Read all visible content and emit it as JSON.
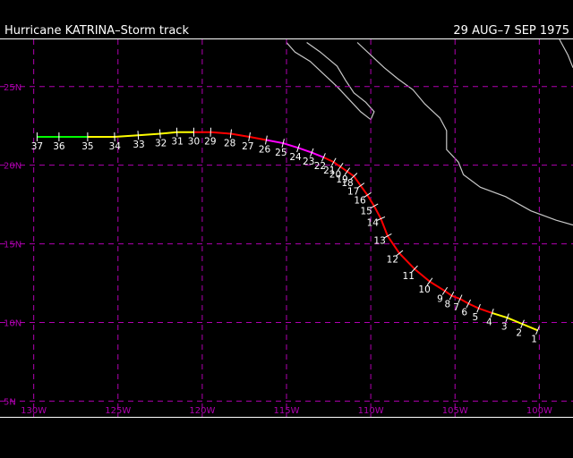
{
  "header": {
    "title": "Hurricane KATRINA–Storm track",
    "dates": "29 AUG–7 SEP 1975"
  },
  "map": {
    "lat_range": [
      4,
      28
    ],
    "lon_range": [
      -132,
      -98
    ],
    "lat_ticks": [
      {
        "value": 25,
        "label": "25N"
      },
      {
        "value": 20,
        "label": "20N"
      },
      {
        "value": 15,
        "label": "15N"
      },
      {
        "value": 10,
        "label": "10N"
      },
      {
        "value": 5,
        "label": "5N"
      }
    ],
    "lon_ticks": [
      {
        "value": -130,
        "label": "130W"
      },
      {
        "value": -125,
        "label": "125W"
      },
      {
        "value": -120,
        "label": "120W"
      },
      {
        "value": -115,
        "label": "115W"
      },
      {
        "value": -110,
        "label": "110W"
      },
      {
        "value": -105,
        "label": "105W"
      },
      {
        "value": -100,
        "label": "100W"
      }
    ],
    "grid_color": "#b000b0",
    "coast_color": "#c8c8c8"
  },
  "intensity_colors": {
    "TD": "#ffff00",
    "TS": "#00ff00",
    "H1": "#ff0000",
    "H2": "#ff00ff"
  },
  "track": [
    {
      "label": "1",
      "lon": -100.1,
      "lat": 9.5,
      "cat": "TD"
    },
    {
      "label": "2",
      "lon": -101.0,
      "lat": 9.9,
      "cat": "TD"
    },
    {
      "label": "3",
      "lon": -101.9,
      "lat": 10.3,
      "cat": "TD"
    },
    {
      "label": "4",
      "lon": -102.8,
      "lat": 10.6,
      "cat": "H1"
    },
    {
      "label": "5",
      "lon": -103.6,
      "lat": 10.9,
      "cat": "H1"
    },
    {
      "label": "6",
      "lon": -104.2,
      "lat": 11.2,
      "cat": "H1"
    },
    {
      "label": "7",
      "lon": -104.7,
      "lat": 11.5,
      "cat": "H1"
    },
    {
      "label": "8",
      "lon": -105.2,
      "lat": 11.7,
      "cat": "H1"
    },
    {
      "label": "9",
      "lon": -105.6,
      "lat": 12.0,
      "cat": "H1"
    },
    {
      "label": "10",
      "lon": -106.5,
      "lat": 12.6,
      "cat": "H1"
    },
    {
      "label": "11",
      "lon": -107.4,
      "lat": 13.4,
      "cat": "H1"
    },
    {
      "label": "12",
      "lon": -108.3,
      "lat": 14.4,
      "cat": "H1"
    },
    {
      "label": "13",
      "lon": -109.0,
      "lat": 15.5,
      "cat": "H1"
    },
    {
      "label": "14",
      "lon": -109.4,
      "lat": 16.6,
      "cat": "H1"
    },
    {
      "label": "15",
      "lon": -109.8,
      "lat": 17.4,
      "cat": "H1"
    },
    {
      "label": "16",
      "lon": -110.2,
      "lat": 18.1,
      "cat": "H1"
    },
    {
      "label": "17",
      "lon": -110.6,
      "lat": 18.7,
      "cat": "H1"
    },
    {
      "label": "18",
      "lon": -111.0,
      "lat": 19.3,
      "cat": "H1"
    },
    {
      "label": "19",
      "lon": -111.4,
      "lat": 19.6,
      "cat": "H1"
    },
    {
      "label": "20",
      "lon": -111.8,
      "lat": 19.9,
      "cat": "H1"
    },
    {
      "label": "21",
      "lon": -112.2,
      "lat": 20.2,
      "cat": "H1"
    },
    {
      "label": "22",
      "lon": -112.8,
      "lat": 20.5,
      "cat": "H2"
    },
    {
      "label": "23",
      "lon": -113.5,
      "lat": 20.8,
      "cat": "H2"
    },
    {
      "label": "24",
      "lon": -114.3,
      "lat": 21.1,
      "cat": "H2"
    },
    {
      "label": "25",
      "lon": -115.2,
      "lat": 21.4,
      "cat": "H2"
    },
    {
      "label": "26",
      "lon": -116.2,
      "lat": 21.6,
      "cat": "H1"
    },
    {
      "label": "27",
      "lon": -117.2,
      "lat": 21.8,
      "cat": "H1"
    },
    {
      "label": "28",
      "lon": -118.3,
      "lat": 22.0,
      "cat": "H1"
    },
    {
      "label": "29",
      "lon": -119.5,
      "lat": 22.1,
      "cat": "H1"
    },
    {
      "label": "30",
      "lon": -120.5,
      "lat": 22.1,
      "cat": "TD"
    },
    {
      "label": "31",
      "lon": -121.5,
      "lat": 22.1,
      "cat": "TD"
    },
    {
      "label": "32",
      "lon": -122.5,
      "lat": 22.0,
      "cat": "TD"
    },
    {
      "label": "33",
      "lon": -123.8,
      "lat": 21.9,
      "cat": "TD"
    },
    {
      "label": "34",
      "lon": -125.2,
      "lat": 21.8,
      "cat": "TD"
    },
    {
      "label": "35",
      "lon": -126.8,
      "lat": 21.8,
      "cat": "TS"
    },
    {
      "label": "36",
      "lon": -128.5,
      "lat": 21.8,
      "cat": "TS"
    },
    {
      "label": "37",
      "lon": -129.8,
      "lat": 21.8,
      "cat": "TS"
    }
  ],
  "coastlines": [
    {
      "name": "baja-west",
      "points": [
        [
          -115.0,
          27.8
        ],
        [
          -114.5,
          27.2
        ],
        [
          -113.6,
          26.6
        ],
        [
          -112.8,
          25.8
        ],
        [
          -112.0,
          25.0
        ],
        [
          -111.3,
          24.2
        ],
        [
          -110.6,
          23.4
        ],
        [
          -110.0,
          22.9
        ]
      ]
    },
    {
      "name": "baja-east",
      "points": [
        [
          -113.8,
          27.8
        ],
        [
          -113.0,
          27.2
        ],
        [
          -112.0,
          26.3
        ],
        [
          -111.5,
          25.4
        ],
        [
          -111.0,
          24.6
        ],
        [
          -110.3,
          24.0
        ],
        [
          -109.8,
          23.4
        ],
        [
          -110.0,
          22.9
        ]
      ]
    },
    {
      "name": "mexico-mainland",
      "points": [
        [
          -110.8,
          27.8
        ],
        [
          -110.0,
          27.0
        ],
        [
          -109.2,
          26.2
        ],
        [
          -108.4,
          25.5
        ],
        [
          -107.5,
          24.8
        ],
        [
          -106.8,
          23.9
        ],
        [
          -105.9,
          23.0
        ],
        [
          -105.5,
          22.2
        ],
        [
          -105.5,
          21.0
        ],
        [
          -104.8,
          20.2
        ],
        [
          -104.5,
          19.4
        ],
        [
          -103.5,
          18.6
        ],
        [
          -102.0,
          18.0
        ],
        [
          -100.5,
          17.1
        ],
        [
          -99.0,
          16.5
        ],
        [
          -98.0,
          16.2
        ]
      ]
    },
    {
      "name": "mexico-gulf",
      "points": [
        [
          -98.8,
          28.0
        ],
        [
          -98.3,
          27.0
        ],
        [
          -98.0,
          26.2
        ]
      ]
    }
  ]
}
